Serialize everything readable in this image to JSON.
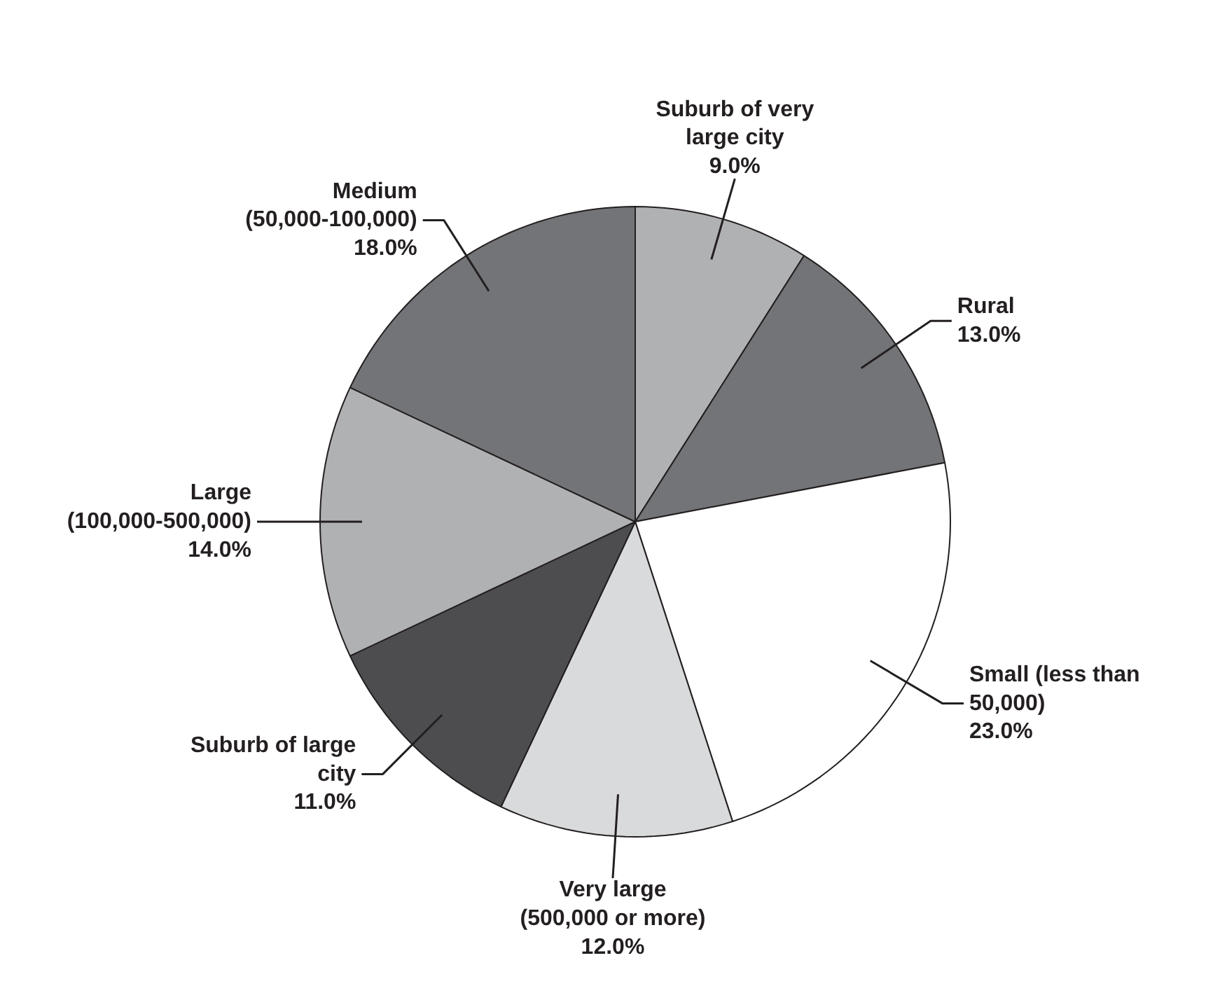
{
  "chart_data": {
    "type": "pie",
    "categories": [
      "Suburb of very large city",
      "Rural",
      "Small (less than 50,000)",
      "Very large (500,000 or more)",
      "Suburb of large city",
      "Large (100,000-500,000)",
      "Medium (50,000-100,000)"
    ],
    "values": [
      9,
      13,
      23,
      12,
      11,
      14,
      18
    ],
    "colors": [
      "#b0b1b3",
      "#737477",
      "#ffffff",
      "#d9dadb",
      "#4d4d4f",
      "#b0b1b3",
      "#737477"
    ],
    "value_labels": [
      "9.0%",
      "13.0%",
      "23.0%",
      "12.0%",
      "11.0%",
      "14.0%",
      "18.0%"
    ]
  }
}
